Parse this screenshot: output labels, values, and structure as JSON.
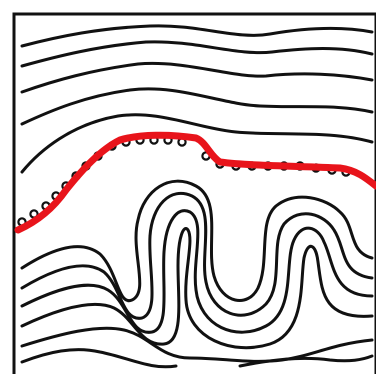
{
  "figure": {
    "kind": "fold-diagram",
    "colors": {
      "background": "#ffffff",
      "ink": "#111111",
      "highlight": "#e8141b"
    },
    "elements": [
      "upper-layers",
      "unconformity-line",
      "folded-layers",
      "lower-layers"
    ]
  }
}
